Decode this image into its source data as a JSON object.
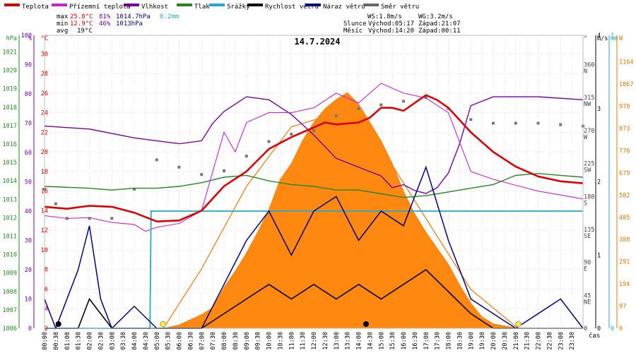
{
  "chart_data": {
    "type": "line",
    "title": "14.7.2024",
    "xlabel": "čas",
    "x_hours": [
      0,
      0.5,
      1,
      1.5,
      2,
      2.5,
      3,
      3.5,
      4,
      4.5,
      5,
      5.5,
      6,
      6.5,
      7,
      7.5,
      8,
      8.5,
      9,
      9.5,
      10,
      10.5,
      11,
      11.5,
      12,
      12.5,
      13,
      13.5,
      14,
      14.5,
      15,
      15.5,
      16,
      16.5,
      17,
      17.5,
      18,
      18.5,
      19,
      19.5,
      20,
      20.5,
      21,
      21.5,
      22,
      22.5,
      23,
      23.5,
      24
    ],
    "x_tick_labels": [
      "00:00",
      "00:30",
      "01:00",
      "01:30",
      "02:00",
      "02:30",
      "03:00",
      "03:30",
      "04:00",
      "04:30",
      "05:00",
      "05:30",
      "06:00",
      "06:30",
      "07:00",
      "07:30",
      "08:00",
      "08:30",
      "09:00",
      "09:30",
      "10:00",
      "10:30",
      "11:00",
      "11:30",
      "12:00",
      "12:30",
      "13:00",
      "13:30",
      "14:00",
      "14:30",
      "15:00",
      "15:30",
      "16:00",
      "16:30",
      "17:00",
      "17:30",
      "18:00",
      "18:30",
      "19:00",
      "19:30",
      "20:00",
      "20:30",
      "21:00",
      "21:30",
      "22:00",
      "22:30",
      "23:00",
      "23:30"
    ],
    "legend": [
      {
        "name": "Teplota",
        "color": "#dd0000"
      },
      {
        "name": "Přízemní teplota",
        "color": "#cc22cc"
      },
      {
        "name": "Vlhkost",
        "color": "#7700aa"
      },
      {
        "name": "Tlak",
        "color": "#228822"
      },
      {
        "name": "Srážky",
        "color": "#22aacc"
      },
      {
        "name": "Rychlost větru",
        "color": "#000000"
      },
      {
        "name": "Náraz větru",
        "color": "#000088"
      },
      {
        "name": "Směr větru",
        "color": "#666666"
      }
    ],
    "stats": {
      "max_label": "max",
      "min_label": "min",
      "avg_label": "avg",
      "temp_max": "25.8°C",
      "temp_min": "12.9°C",
      "temp_avg": "19°C",
      "hum_max": "81%",
      "hum_min": "46%",
      "press_max": "1014.7hPa",
      "press_min": "1013hPa",
      "rain": "0.2mm",
      "ws": "WS:1.8m/s",
      "wg": "WG:3.2m/s",
      "sun_label": "Slunce",
      "moon_label": "Měsíc",
      "sun_rise": "Východ:05:17",
      "sun_set": "Západ:21:07",
      "moon_rise": "Východ:14:20",
      "moon_set": "Západ:00:11"
    },
    "axes": {
      "hpa": {
        "label": "hPa",
        "ticks": [
          "1021",
          "1020",
          "1019",
          "1018",
          "1017",
          "1016",
          "1015",
          "1014",
          "1013",
          "1012",
          "1011",
          "1010",
          "1009",
          "1008",
          "1007",
          "1006"
        ]
      },
      "pct": {
        "label": "%",
        "ticks": [
          "100",
          "90",
          "80",
          "70",
          "60",
          "50",
          "40",
          "30",
          "20",
          "10",
          "0"
        ]
      },
      "celsius": {
        "label": "°C",
        "ticks": [
          "30",
          "28",
          "26",
          "24",
          "22",
          "20",
          "18",
          "16",
          "14",
          "12",
          "10",
          "8",
          "6",
          "4",
          "2"
        ]
      },
      "deg": {
        "label": "°",
        "ticks": [
          "360",
          "315",
          "270",
          "225",
          "180",
          "135",
          "90",
          "45",
          "0"
        ],
        "dir": [
          "N",
          "NW",
          "W",
          "SW",
          "S",
          "SE",
          "E",
          "NE",
          ""
        ]
      },
      "ms": {
        "label": "m/s",
        "ticks": [
          "4",
          "3",
          "2",
          "1",
          "0"
        ]
      },
      "mm": {
        "label": "mm",
        "ticks": [
          "1",
          "0"
        ]
      },
      "w": {
        "label": "W",
        "ticks": [
          "1164",
          "1067",
          "970",
          "873",
          "776",
          "679",
          "582",
          "485",
          "388",
          "291",
          "194",
          "97",
          "0"
        ]
      }
    },
    "series": {
      "temperature_c": [
        [
          0,
          14.4
        ],
        [
          1,
          14.2
        ],
        [
          2,
          14.5
        ],
        [
          3,
          14.4
        ],
        [
          4,
          13.8
        ],
        [
          5,
          12.9
        ],
        [
          6,
          13.0
        ],
        [
          7,
          14.0
        ],
        [
          8,
          16.5
        ],
        [
          9,
          18.0
        ],
        [
          10,
          20.3
        ],
        [
          11,
          21.5
        ],
        [
          12,
          22.5
        ],
        [
          12.5,
          23.0
        ],
        [
          13,
          22.8
        ],
        [
          14,
          23.0
        ],
        [
          14.5,
          23.5
        ],
        [
          15,
          24.5
        ],
        [
          15.5,
          24.5
        ],
        [
          16,
          24.2
        ],
        [
          17,
          25.8
        ],
        [
          17.5,
          25.3
        ],
        [
          18,
          24.5
        ],
        [
          19,
          22.0
        ],
        [
          20,
          20.0
        ],
        [
          21,
          18.5
        ],
        [
          22,
          17.5
        ],
        [
          23,
          17.0
        ],
        [
          24,
          16.8
        ]
      ],
      "ground_temp_c": [
        [
          0,
          13.5
        ],
        [
          1,
          13.2
        ],
        [
          2,
          13.3
        ],
        [
          3,
          12.8
        ],
        [
          4,
          12.6
        ],
        [
          4.5,
          11.9
        ],
        [
          5,
          12.3
        ],
        [
          6,
          12.7
        ],
        [
          7,
          14.0
        ],
        [
          7.5,
          18.0
        ],
        [
          8,
          22.0
        ],
        [
          8.5,
          20.0
        ],
        [
          9,
          23.0
        ],
        [
          10,
          24.0
        ],
        [
          11,
          24.0
        ],
        [
          12,
          24.5
        ],
        [
          13,
          26.0
        ],
        [
          14,
          25.0
        ],
        [
          15,
          27.0
        ],
        [
          16,
          26.0
        ],
        [
          17,
          25.5
        ],
        [
          18,
          24.0
        ],
        [
          18.5,
          21.0
        ],
        [
          19,
          18.0
        ],
        [
          20,
          17.2
        ],
        [
          21,
          16.6
        ],
        [
          22,
          16.0
        ],
        [
          23,
          15.6
        ],
        [
          24,
          15.2
        ]
      ],
      "humidity_pct": [
        [
          0,
          69
        ],
        [
          2,
          68
        ],
        [
          4,
          65
        ],
        [
          6,
          63
        ],
        [
          7,
          64
        ],
        [
          7.5,
          70
        ],
        [
          8,
          74
        ],
        [
          9,
          79
        ],
        [
          10,
          78
        ],
        [
          11,
          73
        ],
        [
          12,
          66
        ],
        [
          13,
          58
        ],
        [
          14,
          55
        ],
        [
          15,
          52
        ],
        [
          15.5,
          48
        ],
        [
          16,
          49
        ],
        [
          16.5,
          47
        ],
        [
          17,
          46
        ],
        [
          17.5,
          48
        ],
        [
          18,
          53
        ],
        [
          18.5,
          63
        ],
        [
          19,
          76
        ],
        [
          20,
          79
        ],
        [
          22,
          79
        ],
        [
          24,
          78
        ]
      ],
      "pressure_hpa": [
        [
          0,
          1013.7
        ],
        [
          2,
          1013.6
        ],
        [
          3,
          1013.5
        ],
        [
          4,
          1013.6
        ],
        [
          5,
          1013.6
        ],
        [
          6,
          1013.7
        ],
        [
          7,
          1013.9
        ],
        [
          8,
          1014.2
        ],
        [
          9,
          1014.3
        ],
        [
          10,
          1014.0
        ],
        [
          11,
          1013.8
        ],
        [
          12,
          1013.7
        ],
        [
          13,
          1013.5
        ],
        [
          14,
          1013.5
        ],
        [
          15,
          1013.3
        ],
        [
          16,
          1013.1
        ],
        [
          17,
          1013.2
        ],
        [
          18,
          1013.4
        ],
        [
          19,
          1013.6
        ],
        [
          20,
          1013.8
        ],
        [
          21,
          1014.3
        ],
        [
          22,
          1014.4
        ],
        [
          23,
          1014.3
        ],
        [
          24,
          1014.2
        ]
      ],
      "rain_mm": [
        [
          0,
          0
        ],
        [
          4.7,
          0
        ],
        [
          4.75,
          0.16
        ],
        [
          24,
          0.16
        ]
      ],
      "wind_speed_ms": [
        [
          0,
          0
        ],
        [
          1.5,
          0
        ],
        [
          2,
          0.4
        ],
        [
          3,
          0
        ],
        [
          5,
          0
        ],
        [
          7,
          0
        ],
        [
          9,
          0.4
        ],
        [
          10,
          0.6
        ],
        [
          11,
          0.4
        ],
        [
          12,
          0.6
        ],
        [
          13,
          0.4
        ],
        [
          14,
          0.6
        ],
        [
          15,
          0.4
        ],
        [
          16,
          0.6
        ],
        [
          17,
          0.8
        ],
        [
          18,
          0.5
        ],
        [
          19,
          0.2
        ],
        [
          20,
          0
        ],
        [
          24,
          0
        ]
      ],
      "wind_gust_ms": [
        [
          0,
          0.4
        ],
        [
          0.5,
          0
        ],
        [
          1.5,
          0.8
        ],
        [
          2,
          1.4
        ],
        [
          2.5,
          0.4
        ],
        [
          3,
          0
        ],
        [
          4,
          0.3
        ],
        [
          5,
          0
        ],
        [
          7,
          0
        ],
        [
          8,
          0.6
        ],
        [
          9,
          1.2
        ],
        [
          10,
          1.6
        ],
        [
          11,
          1.0
        ],
        [
          12,
          1.6
        ],
        [
          13,
          1.8
        ],
        [
          14,
          1.2
        ],
        [
          15,
          1.6
        ],
        [
          16,
          1.4
        ],
        [
          17,
          2.2
        ],
        [
          18,
          1.2
        ],
        [
          19,
          0.4
        ],
        [
          20,
          0.2
        ],
        [
          21,
          0
        ],
        [
          23,
          0.4
        ],
        [
          24,
          0
        ]
      ],
      "wind_dir_deg": [
        [
          0,
          190
        ],
        [
          0.5,
          170
        ],
        [
          1,
          150
        ],
        [
          2,
          150
        ],
        [
          3,
          150
        ],
        [
          4,
          190
        ],
        [
          5,
          230
        ],
        [
          6,
          220
        ],
        [
          7,
          210
        ],
        [
          8,
          215
        ],
        [
          9,
          235
        ],
        [
          10,
          255
        ],
        [
          11,
          265
        ],
        [
          12,
          270
        ],
        [
          13,
          290
        ],
        [
          14,
          300
        ],
        [
          15,
          305
        ],
        [
          16,
          310
        ],
        [
          17,
          315
        ],
        [
          18,
          300
        ],
        [
          19,
          285
        ],
        [
          20,
          280
        ],
        [
          21,
          280
        ],
        [
          22,
          280
        ],
        [
          23,
          278
        ],
        [
          24,
          276
        ]
      ],
      "solar_w": [
        [
          0,
          0
        ],
        [
          5.3,
          0
        ],
        [
          6,
          15
        ],
        [
          7,
          60
        ],
        [
          7.5,
          90
        ],
        [
          8,
          180
        ],
        [
          8.5,
          250
        ],
        [
          9,
          330
        ],
        [
          9.5,
          420
        ],
        [
          10,
          520
        ],
        [
          10.5,
          650
        ],
        [
          11,
          720
        ],
        [
          11.5,
          820
        ],
        [
          12,
          900
        ],
        [
          12.5,
          960
        ],
        [
          13,
          1000
        ],
        [
          13.5,
          1030
        ],
        [
          14,
          980
        ],
        [
          14.5,
          900
        ],
        [
          15,
          820
        ],
        [
          15.5,
          720
        ],
        [
          16,
          600
        ],
        [
          16.5,
          500
        ],
        [
          17,
          420
        ],
        [
          17.5,
          350
        ],
        [
          18,
          280
        ],
        [
          18.5,
          190
        ],
        [
          19,
          110
        ],
        [
          19.5,
          50
        ],
        [
          20,
          20
        ],
        [
          21.1,
          0
        ],
        [
          24,
          0
        ]
      ],
      "solar_theoretical_w": [
        [
          5.3,
          0
        ],
        [
          7,
          260
        ],
        [
          9,
          620
        ],
        [
          11,
          880
        ],
        [
          13,
          940
        ],
        [
          15,
          790
        ],
        [
          17,
          480
        ],
        [
          19,
          170
        ],
        [
          21.1,
          0
        ]
      ]
    },
    "markers": {
      "sunrise_h": 5.28,
      "sunset_h": 21.12,
      "moonrise_h": 14.33,
      "moonset_h": 0.18
    }
  }
}
